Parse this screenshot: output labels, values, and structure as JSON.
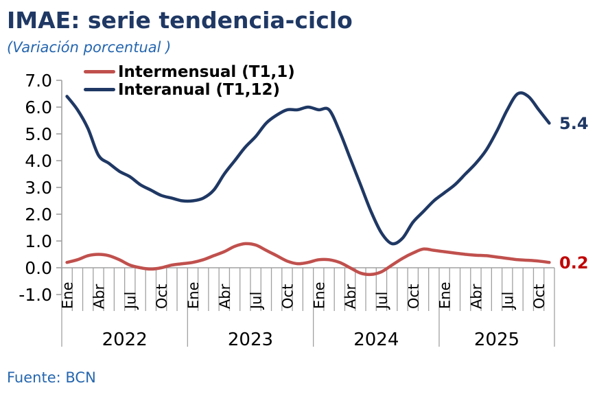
{
  "header": {
    "title": "IMAE: serie tendencia-ciclo",
    "subtitle": "(Variación porcentual )"
  },
  "footer": {
    "source": "Fuente: BCN"
  },
  "colors": {
    "title_navy": "#1F3864",
    "accent_blue": "#2566AF",
    "axis_gray": "#A0A0A0",
    "label_black": "#000000"
  },
  "chart_data": {
    "type": "line",
    "title": "IMAE: serie tendencia-ciclo",
    "subtitle": "(Variación porcentual )",
    "ylim": [
      -1.0,
      7.0
    ],
    "ytick_step": 1.0,
    "ytick_labels": [
      "7.0",
      "6.0",
      "5.0",
      "4.0",
      "3.0",
      "2.0",
      "1.0",
      "0.0",
      "-1.0"
    ],
    "years": [
      "2022",
      "2023",
      "2024",
      "2025"
    ],
    "months_per_year": [
      12,
      12,
      12,
      11
    ],
    "month_tick_labels": [
      "Ene",
      "Abr",
      "Jul",
      "Oct"
    ],
    "legend_position": "top-left",
    "grid": false,
    "series": [
      {
        "name": "Intermensual (T1,1)",
        "color": "#C0504D",
        "end_label": "0.2",
        "end_label_color": "#C00000",
        "values": [
          0.2,
          0.3,
          0.45,
          0.5,
          0.45,
          0.3,
          0.1,
          0.0,
          -0.05,
          0.0,
          0.1,
          0.15,
          0.2,
          0.3,
          0.45,
          0.6,
          0.8,
          0.9,
          0.85,
          0.65,
          0.45,
          0.25,
          0.15,
          0.2,
          0.3,
          0.3,
          0.2,
          0.0,
          -0.2,
          -0.25,
          -0.15,
          0.1,
          0.35,
          0.55,
          0.7,
          0.65,
          0.6,
          0.55,
          0.5,
          0.47,
          0.45,
          0.4,
          0.35,
          0.3,
          0.28,
          0.25,
          0.2
        ]
      },
      {
        "name": "Interanual (T1,12)",
        "color": "#1F3864",
        "end_label": "5.4",
        "end_label_color": "#1F3864",
        "values": [
          6.4,
          5.9,
          5.2,
          4.2,
          3.9,
          3.6,
          3.4,
          3.1,
          2.9,
          2.7,
          2.6,
          2.5,
          2.5,
          2.6,
          2.9,
          3.5,
          4.0,
          4.5,
          4.9,
          5.4,
          5.7,
          5.9,
          5.9,
          6.0,
          5.9,
          5.9,
          5.1,
          4.1,
          3.1,
          2.1,
          1.3,
          0.9,
          1.1,
          1.7,
          2.1,
          2.5,
          2.8,
          3.1,
          3.5,
          3.9,
          4.4,
          5.1,
          5.9,
          6.5,
          6.4,
          5.9,
          5.4
        ]
      }
    ]
  }
}
